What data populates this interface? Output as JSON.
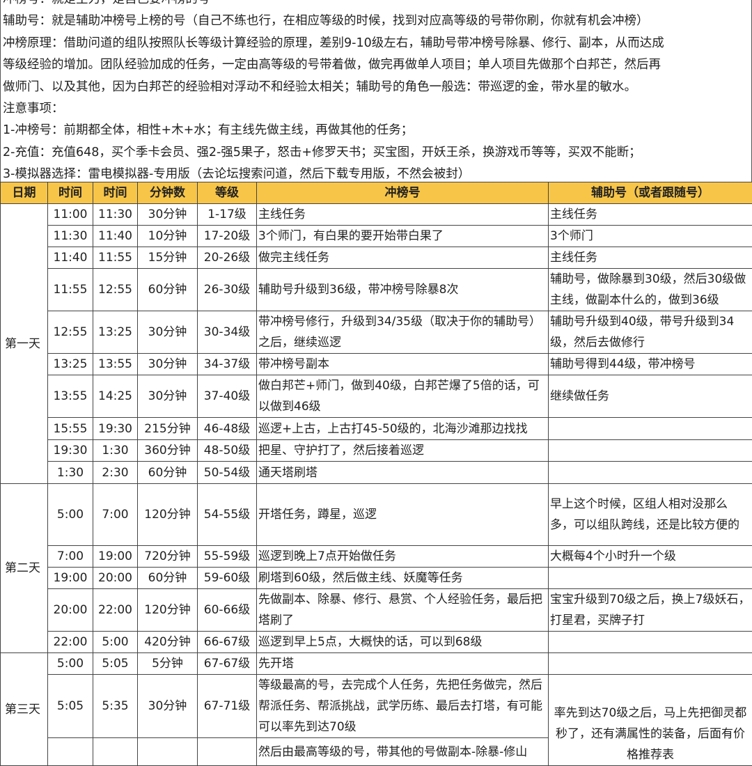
{
  "notes": [
    "冲榜号：就是主力，是自己要冲榜的号",
    "辅助号：就是辅助冲榜号上榜的号（自己不练也行，在相应等级的时候，找到对应高等级的号带你刷，你就有机会冲榜）",
    "冲榜原理：借助问道的组队按照队长等级计算经验的原理，差别9-10级左右，辅助号带冲榜号除暴、修行、副本，从而达成",
    "等级经验的增加。团队经验加成的任务，一定由高等级的号带着做，做完再做单人项目；单人项目先做那个白邦芒，然后再",
    "做师门、以及其他，因为白邦芒的经验相对浮动不和经验太相关；辅助号的角色一般选：带巡逻的金，带水星的敏水。",
    "注意事项：",
    "1-冲榜号：前期都全体，相性+木+水；有主线先做主线，再做其他的任务；",
    "2-充值：充值648，买个季卡会员、强2-强5果子，怒击+修罗天书；买宝图，开妖王杀，换游戏币等等，买双不能断；",
    "3-模拟器选择：雷电模拟器-专用版（去论坛搜索问道，然后下载专用版，不然会被封）"
  ],
  "table": {
    "header_color": "#f7c548",
    "headers": [
      "日期",
      "时间",
      "时间",
      "分钟数",
      "等级",
      "冲榜号",
      "辅助号（或者跟随号）"
    ],
    "days": [
      {
        "label": "第一天",
        "rows": [
          {
            "start": "11:00",
            "end": "11:30",
            "minutes": "30分钟",
            "level": "1-17级",
            "main": "主线任务",
            "assist": "主线任务"
          },
          {
            "start": "11:30",
            "end": "11:40",
            "minutes": "10分钟",
            "level": "17-20级",
            "main": "3个师门，有白果的要开始带白果了",
            "assist": "3个师门"
          },
          {
            "start": "11:40",
            "end": "11:55",
            "minutes": "15分钟",
            "level": "20-26级",
            "main": "做完主线任务",
            "assist": "主线任务"
          },
          {
            "start": "11:55",
            "end": "12:55",
            "minutes": "60分钟",
            "level": "26-30级",
            "main": "辅助号升级到36级，带冲榜号除暴8次",
            "assist": "辅助号，做除暴到30级，然后30级做主线，做副本什么的，做到36级"
          },
          {
            "start": "12:55",
            "end": "13:25",
            "minutes": "30分钟",
            "level": "30-34级",
            "main": "带冲榜号修行，升级到34/35级（取决于你的辅助号）之后，继续巡逻",
            "assist": "辅助号升级到40级，带号升级到34级，然后去做修行"
          },
          {
            "start": "13:25",
            "end": "13:55",
            "minutes": "30分钟",
            "level": "34-37级",
            "main": "带冲榜号副本",
            "assist": "辅助号得到44级，带冲榜号"
          },
          {
            "start": "13:55",
            "end": "14:25",
            "minutes": "30分钟",
            "level": "37-40级",
            "main": "做白邦芒+师门，做到40级，白邦芒爆了5倍的话，可以做到46级",
            "assist": "继续做任务"
          },
          {
            "start": "15:55",
            "end": "19:30",
            "minutes": "215分钟",
            "level": "46-48级",
            "main": "巡逻+上古，上古打45-50级的，北海沙滩那边找找",
            "assist": ""
          },
          {
            "start": "19:30",
            "end": "1:30",
            "minutes": "360分钟",
            "level": "48-50级",
            "main": "把星、守护打了，然后接着巡逻",
            "assist": ""
          },
          {
            "start": "1:30",
            "end": "2:30",
            "minutes": "60分钟",
            "level": "50-54级",
            "main": "通天塔刷塔",
            "assist": ""
          }
        ]
      },
      {
        "label": "第二天",
        "rows": [
          {
            "start": "5:00",
            "end": "7:00",
            "minutes": "120分钟",
            "level": "54-55级",
            "main": "开塔任务，蹲星，巡逻",
            "assist": "早上这个时候，区组人相对没那么多，可以组队跨线，还是比较方便的"
          },
          {
            "start": "7:00",
            "end": "19:00",
            "minutes": "720分钟",
            "level": "55-59级",
            "main": "巡逻到晚上7点开始做任务",
            "assist": "大概每4个小时升一个级"
          },
          {
            "start": "19:00",
            "end": "20:00",
            "minutes": "60分钟",
            "level": "59-60级",
            "main": "刷塔到60级，然后做主线、妖魔等任务",
            "assist": ""
          },
          {
            "start": "20:00",
            "end": "22:00",
            "minutes": "120分钟",
            "level": "60-66级",
            "main": "先做副本、除暴、修行、悬赏、个人经验任务，最后把塔刷了",
            "assist": "宝宝升级到70级之后，换上7级妖石，打星君，买牌子打"
          },
          {
            "start": "22:00",
            "end": "5:00",
            "minutes": "420分钟",
            "level": "66-67级",
            "main": "巡逻到早上5点，大概快的话，可以到68级",
            "assist": ""
          }
        ]
      },
      {
        "label": "第三天",
        "rows": [
          {
            "start": "5:00",
            "end": "5:05",
            "minutes": "5分钟",
            "level": "67-67级",
            "main": "先开塔",
            "assist": ""
          },
          {
            "start": "5:05",
            "end": "5:35",
            "minutes": "30分钟",
            "level": "67-71级",
            "main": "等级最高的号，去完成个人任务，先把任务做完，然后帮派任务、帮派挑战，武学历练、最后去打塔，有可能可以率先到达70级",
            "assist": "率先到达70级之后，马上先把御灵都秒了，还有满属性的装备，后面有价格推荐表"
          },
          {
            "start": "",
            "end": "",
            "minutes": "",
            "level": "",
            "main": "然后由最高等级的号，带其他的号做副本-除暴-修山"
          }
        ]
      }
    ]
  }
}
